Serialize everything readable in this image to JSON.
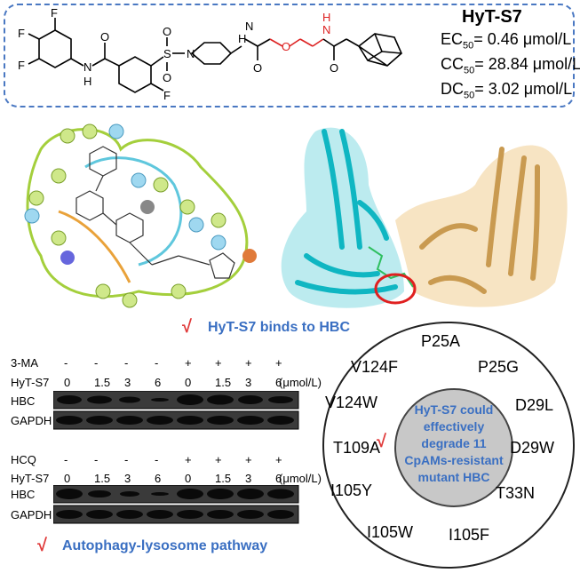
{
  "compound": {
    "name": "HyT-S7",
    "ec50_label": "EC",
    "ec50_value": "= 0.46 μmol/L",
    "cc50_label": "CC",
    "cc50_value": "= 28.84 μmol/L",
    "dc50_label": "DC",
    "dc50_value": "= 3.02 μmol/L",
    "subscript": "50",
    "atom_F": "F",
    "atom_N": "N",
    "atom_H": "H",
    "atom_O": "O",
    "atom_S": "S"
  },
  "binding_caption": "HyT-S7 binds to HBC",
  "check_mark": "√",
  "blot1": {
    "row1_label": "3-MA",
    "row1_values": [
      "-",
      "-",
      "-",
      "-",
      "+",
      "+",
      "+",
      "+"
    ],
    "row2_label": "HyT-S7",
    "row2_values": [
      "0",
      "1.5",
      "3",
      "6",
      "0",
      "1.5",
      "3",
      "6"
    ],
    "unit": "(μmol/L)",
    "band1": "HBC",
    "band2": "GAPDH"
  },
  "blot2": {
    "row1_label": "HCQ",
    "row1_values": [
      "-",
      "-",
      "-",
      "-",
      "+",
      "+",
      "+",
      "+"
    ],
    "row2_label": "HyT-S7",
    "row2_values": [
      "0",
      "1.5",
      "3",
      "6",
      "0",
      "1.5",
      "3",
      "6"
    ],
    "unit": "(μmol/L)",
    "band1": "HBC",
    "band2": "GAPDH"
  },
  "pathway_caption": "Autophagy-lysosome pathway",
  "circle": {
    "center_text": "HyT-S7 could effectively degrade 11 CpAMs-resistant mutant HBC",
    "mutants": [
      "P25A",
      "P25G",
      "D29L",
      "D29W",
      "T33N",
      "I105F",
      "I105W",
      "I105Y",
      "T109A",
      "V124W",
      "V124F"
    ]
  }
}
